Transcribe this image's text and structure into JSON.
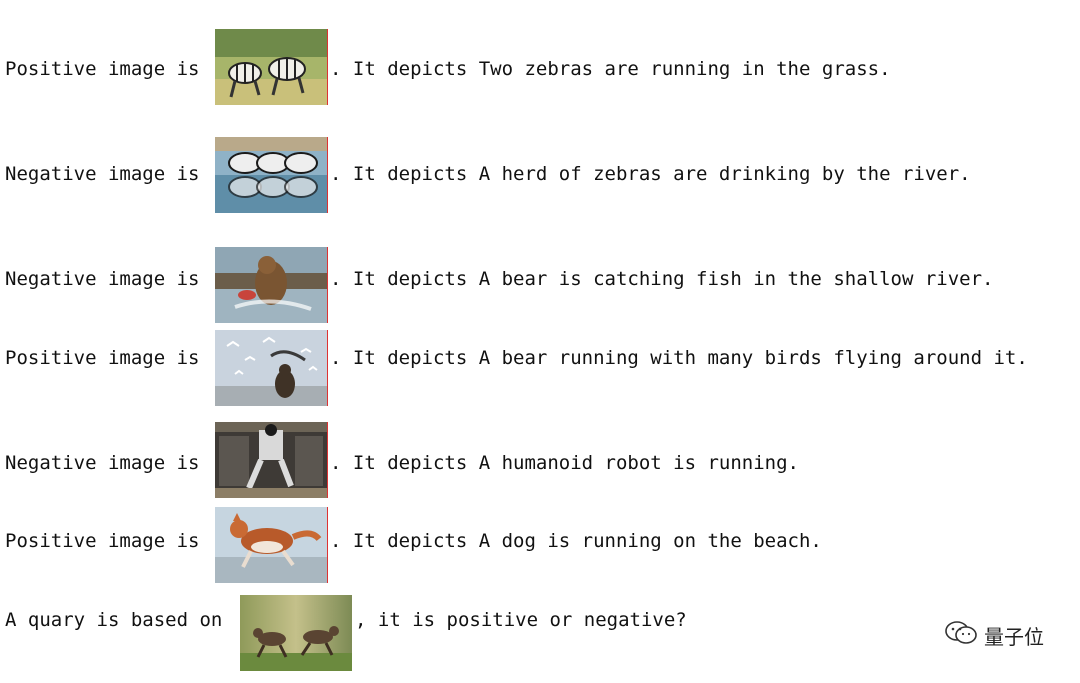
{
  "rows": [
    {
      "label": "Positive image is",
      "caption": ". It depicts Two zebras are running in the grass.",
      "image": "two-zebras-running-grass"
    },
    {
      "label": "Negative image is",
      "caption": ". It depicts A herd of zebras are drinking by the river.",
      "image": "zebras-drinking-river"
    },
    {
      "label": "Negative image is",
      "caption": ". It depicts A bear is catching fish in the shallow river.",
      "image": "bear-catching-fish"
    },
    {
      "label": "Positive image is",
      "caption": ". It depicts A bear running with many birds flying around it.",
      "image": "bear-running-birds"
    },
    {
      "label": "Negative image is",
      "caption": ". It depicts A humanoid robot is running.",
      "image": "humanoid-robot"
    },
    {
      "label": "Positive image is",
      "caption": ". It depicts A dog is running on the beach.",
      "image": "dog-running-beach"
    }
  ],
  "query": {
    "prefix": "A quary is based on",
    "suffix": ", it is positive or negative?",
    "image": "wildebeest-running"
  },
  "watermark": {
    "text": "量子位",
    "icon": "wechat-icon"
  }
}
